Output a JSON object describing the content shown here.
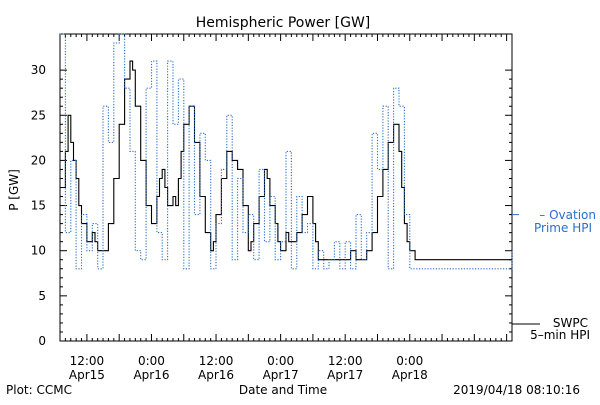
{
  "colors": {
    "swpc": "#000000",
    "ovation": "#2a6fc9",
    "axis": "#000000"
  },
  "chart_data": {
    "type": "line",
    "title": "Hemispheric Power [GW]",
    "xlabel": "Date and Time",
    "ylabel": "P [GW]",
    "ylim": [
      0,
      34
    ],
    "xlim": [
      7,
      91
    ],
    "y_ticks": [
      0,
      5,
      10,
      15,
      20,
      25,
      30
    ],
    "y_tick_labels": [
      "0",
      "5",
      "10",
      "15",
      "20",
      "25",
      "30"
    ],
    "x_ticks": [
      {
        "x": 12,
        "time": "12:00",
        "date": "Apr15"
      },
      {
        "x": 24,
        "time": "0:00",
        "date": "Apr16"
      },
      {
        "x": 36,
        "time": "12:00",
        "date": "Apr16"
      },
      {
        "x": 48,
        "time": "0:00",
        "date": "Apr17"
      },
      {
        "x": 60,
        "time": "12:00",
        "date": "Apr17"
      },
      {
        "x": 72,
        "time": "0:00",
        "date": "Apr18"
      }
    ],
    "grid": false,
    "legend_position": "right",
    "footer_left": "Plot: CCMC",
    "footer_right": "2019/04/18 08:10:16",
    "series": [
      {
        "name": "SWPC 5-min HPI",
        "legend_lines": [
          "SWPC",
          "5–min HPI"
        ],
        "style": "solid",
        "x": [
          7,
          8,
          8.5,
          9,
          9.5,
          10,
          10.5,
          11,
          12,
          13,
          13.5,
          14,
          15,
          16,
          17,
          18,
          19,
          20,
          20.5,
          21,
          22,
          23,
          24,
          25,
          25.5,
          26,
          26.5,
          27,
          28,
          28.5,
          29,
          29.5,
          30,
          31,
          32,
          33,
          34,
          35,
          35.5,
          36,
          37,
          38,
          39,
          40,
          41,
          42,
          42.5,
          43,
          44,
          45,
          45.5,
          46,
          47,
          47.5,
          48,
          49,
          49.5,
          50,
          51,
          52,
          53,
          54,
          54.5,
          55,
          56,
          57,
          58,
          59,
          60,
          61,
          62,
          63,
          64,
          65,
          66,
          67,
          68,
          69,
          70,
          70.5,
          71,
          71.5,
          72,
          73,
          74,
          80,
          85,
          90,
          91
        ],
        "y": [
          17,
          21,
          25,
          22,
          20,
          18,
          15,
          13,
          11,
          12,
          11,
          10,
          10,
          13,
          18,
          24,
          29,
          31,
          30,
          26,
          20,
          15,
          13,
          16,
          18,
          19,
          17,
          15,
          16,
          15,
          18,
          21,
          24,
          26,
          22,
          16,
          12,
          10,
          11,
          14,
          18,
          21,
          20,
          19,
          15,
          10,
          11,
          13,
          16,
          19,
          18,
          15,
          13,
          11,
          10,
          12,
          11,
          11,
          12,
          14,
          16,
          13,
          11,
          9,
          9,
          9,
          9,
          9,
          9,
          10,
          9,
          9,
          10,
          12,
          16,
          19,
          22,
          24,
          21,
          17,
          13,
          11,
          10,
          9,
          9,
          9,
          9,
          9,
          9
        ]
      },
      {
        "name": "Ovation Prime HPI",
        "legend_lines": [
          "– Ovation",
          "Prime HPI"
        ],
        "style": "dotted",
        "x": [
          7,
          8,
          9,
          10,
          11,
          12,
          13,
          14,
          15,
          16,
          17,
          18,
          19,
          20,
          21,
          22,
          23,
          24,
          25,
          26,
          27,
          28,
          29,
          30,
          31,
          32,
          33,
          34,
          35,
          36,
          37,
          38,
          39,
          40,
          41,
          42,
          43,
          44,
          45,
          46,
          47,
          48,
          49,
          50,
          51,
          52,
          53,
          54,
          55,
          56,
          57,
          58,
          59,
          60,
          61,
          62,
          63,
          64,
          65,
          66,
          67,
          68,
          69,
          70,
          71,
          72,
          73,
          74,
          75,
          80,
          85,
          89,
          91
        ],
        "y": [
          34,
          12,
          20,
          8,
          14,
          10,
          13,
          8,
          26,
          22,
          33,
          34,
          28,
          21,
          10,
          9,
          28,
          31,
          12,
          9,
          31,
          24,
          29,
          8,
          26,
          14,
          23,
          20,
          8,
          13,
          19,
          25,
          9,
          18,
          12,
          14,
          9,
          19,
          11,
          16,
          9,
          11,
          21,
          8,
          16,
          12,
          13,
          8,
          10,
          8,
          9,
          11,
          8,
          11,
          8,
          14,
          9,
          12,
          23,
          19,
          26,
          8,
          28,
          26,
          14,
          8,
          8,
          8,
          8,
          8,
          8,
          8,
          10
        ]
      }
    ]
  }
}
